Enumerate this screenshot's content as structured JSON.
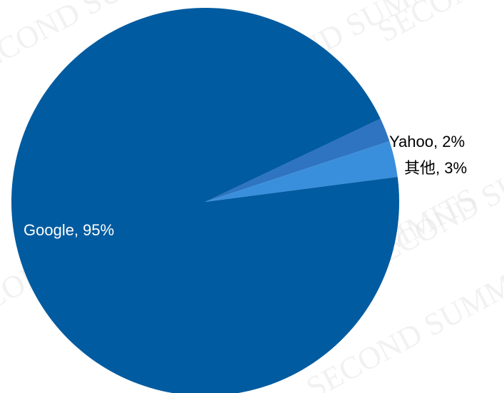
{
  "chart_data": {
    "type": "pie",
    "title": "",
    "slices": [
      {
        "label": "Google",
        "value": 95,
        "display": "Google, 95%",
        "color": "#005ba0",
        "label_color": "#ffffff"
      },
      {
        "label": "Yahoo",
        "value": 2,
        "display": "Yahoo, 2%",
        "color": "#2e74c0",
        "label_color": "#000000"
      },
      {
        "label": "其他",
        "value": 3,
        "display": "其他, 3%",
        "color": "#3a8fdc",
        "label_color": "#000000"
      }
    ],
    "start_direction": "clockwise from the Yahoo slice at roughly the 2 o'clock position",
    "legend": "none"
  },
  "watermark": {
    "text": "SECOND SUMMITS",
    "color": "#e6e6e6"
  }
}
